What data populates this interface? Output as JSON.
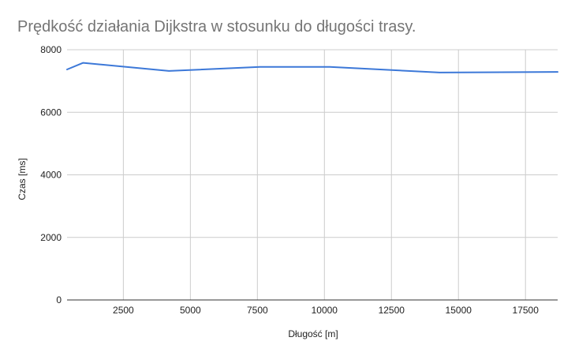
{
  "chart_data": {
    "type": "line",
    "title": "Prędkość działania Dijkstra w stosunku do długości trasy.",
    "xlabel": "Długość [m]",
    "ylabel": "Czas [ms]",
    "xlim": [
      400,
      18700
    ],
    "ylim": [
      0,
      8000
    ],
    "x_ticks": [
      2500,
      5000,
      7500,
      10000,
      12500,
      15000,
      17500
    ],
    "y_ticks": [
      0,
      2000,
      4000,
      6000,
      8000
    ],
    "grid": true,
    "legend": "none",
    "series": [
      {
        "color": "#3c78d8",
        "x": [
          400,
          1000,
          4200,
          7600,
          10200,
          14300,
          18700
        ],
        "y": [
          7370,
          7580,
          7320,
          7450,
          7450,
          7270,
          7290
        ]
      }
    ]
  }
}
